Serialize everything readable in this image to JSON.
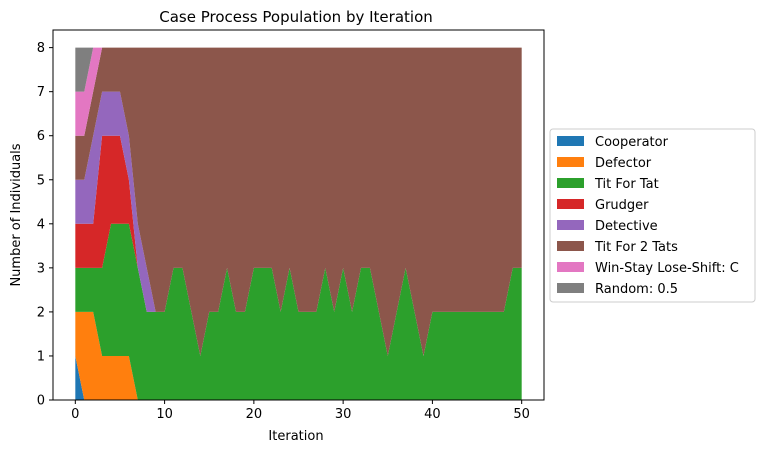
{
  "chart_data": {
    "type": "area",
    "stacked": true,
    "title": "Case Process Population by Iteration",
    "xlabel": "Iteration",
    "ylabel": "Number of Individuals",
    "xlim": [
      -2.5,
      52.5
    ],
    "ylim": [
      0,
      8.4
    ],
    "xticks": [
      0,
      10,
      20,
      30,
      40,
      50
    ],
    "yticks": [
      0,
      1,
      2,
      3,
      4,
      5,
      6,
      7,
      8
    ],
    "grid": false,
    "legend_position": "outside-right",
    "x": [
      0,
      1,
      2,
      3,
      4,
      5,
      6,
      7,
      8,
      9,
      10,
      11,
      12,
      13,
      14,
      15,
      16,
      17,
      18,
      19,
      20,
      21,
      22,
      23,
      24,
      25,
      26,
      27,
      28,
      29,
      30,
      31,
      32,
      33,
      34,
      35,
      36,
      37,
      38,
      39,
      40,
      41,
      42,
      43,
      44,
      45,
      46,
      47,
      48,
      49,
      50
    ],
    "series": [
      {
        "name": "Cooperator",
        "color": "#1f77b4",
        "values": [
          1,
          0,
          0,
          0,
          0,
          0,
          0,
          0,
          0,
          0,
          0,
          0,
          0,
          0,
          0,
          0,
          0,
          0,
          0,
          0,
          0,
          0,
          0,
          0,
          0,
          0,
          0,
          0,
          0,
          0,
          0,
          0,
          0,
          0,
          0,
          0,
          0,
          0,
          0,
          0,
          0,
          0,
          0,
          0,
          0,
          0,
          0,
          0,
          0,
          0,
          0
        ]
      },
      {
        "name": "Defector",
        "color": "#ff7f0e",
        "values": [
          1,
          2,
          2,
          1,
          1,
          1,
          1,
          0,
          0,
          0,
          0,
          0,
          0,
          0,
          0,
          0,
          0,
          0,
          0,
          0,
          0,
          0,
          0,
          0,
          0,
          0,
          0,
          0,
          0,
          0,
          0,
          0,
          0,
          0,
          0,
          0,
          0,
          0,
          0,
          0,
          0,
          0,
          0,
          0,
          0,
          0,
          0,
          0,
          0,
          0,
          0
        ]
      },
      {
        "name": "Tit For Tat",
        "color": "#2ca02c",
        "values": [
          1,
          1,
          1,
          2,
          3,
          3,
          3,
          3,
          2,
          2,
          2,
          3,
          3,
          2,
          1,
          2,
          2,
          3,
          2,
          2,
          3,
          3,
          3,
          2,
          3,
          2,
          2,
          2,
          3,
          2,
          3,
          2,
          3,
          3,
          2,
          1,
          2,
          3,
          2,
          1,
          2,
          2,
          2,
          2,
          2,
          2,
          2,
          2,
          2,
          3,
          3
        ]
      },
      {
        "name": "Grudger",
        "color": "#d62728",
        "values": [
          1,
          1,
          1,
          3,
          2,
          2,
          1,
          0,
          0,
          0,
          0,
          0,
          0,
          0,
          0,
          0,
          0,
          0,
          0,
          0,
          0,
          0,
          0,
          0,
          0,
          0,
          0,
          0,
          0,
          0,
          0,
          0,
          0,
          0,
          0,
          0,
          0,
          0,
          0,
          0,
          0,
          0,
          0,
          0,
          0,
          0,
          0,
          0,
          0,
          0,
          0
        ]
      },
      {
        "name": "Detective",
        "color": "#9467bd",
        "values": [
          1,
          1,
          2,
          1,
          1,
          1,
          1,
          1,
          1,
          0,
          0,
          0,
          0,
          0,
          0,
          0,
          0,
          0,
          0,
          0,
          0,
          0,
          0,
          0,
          0,
          0,
          0,
          0,
          0,
          0,
          0,
          0,
          0,
          0,
          0,
          0,
          0,
          0,
          0,
          0,
          0,
          0,
          0,
          0,
          0,
          0,
          0,
          0,
          0,
          0,
          0
        ]
      },
      {
        "name": "Tit For 2 Tats",
        "color": "#8c564b",
        "values": [
          1,
          1,
          1,
          1,
          1,
          1,
          2,
          4,
          5,
          6,
          6,
          5,
          5,
          6,
          7,
          6,
          6,
          5,
          6,
          6,
          5,
          5,
          5,
          6,
          5,
          6,
          6,
          6,
          5,
          6,
          5,
          6,
          5,
          5,
          6,
          7,
          6,
          5,
          6,
          7,
          6,
          6,
          6,
          6,
          6,
          6,
          6,
          6,
          6,
          5,
          5
        ]
      },
      {
        "name": "Win-Stay Lose-Shift: C",
        "color": "#e377c2",
        "values": [
          1,
          1,
          1,
          0,
          0,
          0,
          0,
          0,
          0,
          0,
          0,
          0,
          0,
          0,
          0,
          0,
          0,
          0,
          0,
          0,
          0,
          0,
          0,
          0,
          0,
          0,
          0,
          0,
          0,
          0,
          0,
          0,
          0,
          0,
          0,
          0,
          0,
          0,
          0,
          0,
          0,
          0,
          0,
          0,
          0,
          0,
          0,
          0,
          0,
          0,
          0
        ]
      },
      {
        "name": "Random: 0.5",
        "color": "#7f7f7f",
        "values": [
          1,
          1,
          0,
          0,
          0,
          0,
          0,
          0,
          0,
          0,
          0,
          0,
          0,
          0,
          0,
          0,
          0,
          0,
          0,
          0,
          0,
          0,
          0,
          0,
          0,
          0,
          0,
          0,
          0,
          0,
          0,
          0,
          0,
          0,
          0,
          0,
          0,
          0,
          0,
          0,
          0,
          0,
          0,
          0,
          0,
          0,
          0,
          0,
          0,
          0,
          0
        ]
      }
    ]
  }
}
